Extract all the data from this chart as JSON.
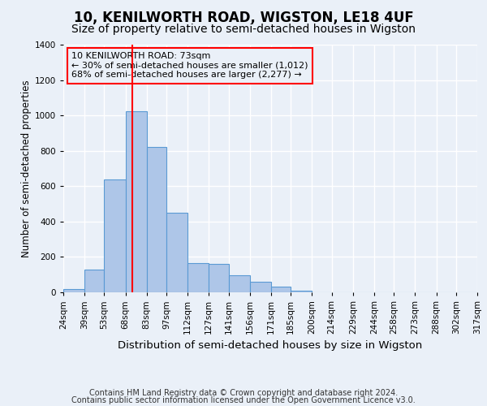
{
  "title": "10, KENILWORTH ROAD, WIGSTON, LE18 4UF",
  "subtitle": "Size of property relative to semi-detached houses in Wigston",
  "xlabel": "Distribution of semi-detached houses by size in Wigston",
  "ylabel": "Number of semi-detached properties",
  "annotation_line1": "10 KENILWORTH ROAD: 73sqm",
  "annotation_line2": "← 30% of semi-detached houses are smaller (1,012)",
  "annotation_line3": "68% of semi-detached houses are larger (2,277) →",
  "footnote1": "Contains HM Land Registry data © Crown copyright and database right 2024.",
  "footnote2": "Contains public sector information licensed under the Open Government Licence v3.0.",
  "bin_labels": [
    "24sqm",
    "39sqm",
    "53sqm",
    "68sqm",
    "83sqm",
    "97sqm",
    "112sqm",
    "127sqm",
    "141sqm",
    "156sqm",
    "171sqm",
    "185sqm",
    "200sqm",
    "214sqm",
    "229sqm",
    "244sqm",
    "258sqm",
    "273sqm",
    "288sqm",
    "302sqm",
    "317sqm"
  ],
  "bin_edges": [
    24,
    39,
    53,
    68,
    83,
    97,
    112,
    127,
    141,
    156,
    171,
    185,
    200,
    214,
    229,
    244,
    258,
    273,
    288,
    302,
    317
  ],
  "bar_heights": [
    20,
    130,
    640,
    1025,
    820,
    450,
    165,
    160,
    95,
    60,
    30,
    10,
    0,
    0,
    0,
    0,
    0,
    0,
    0,
    0
  ],
  "bar_color": "#aec6e8",
  "bar_edge_color": "#5a9ad4",
  "vline_color": "red",
  "vline_x": 73,
  "annotation_box_color": "red",
  "background_color": "#eaf0f8",
  "grid_color": "white",
  "ylim": [
    0,
    1400
  ],
  "yticks": [
    0,
    200,
    400,
    600,
    800,
    1000,
    1200,
    1400
  ],
  "title_fontsize": 12,
  "subtitle_fontsize": 10,
  "xlabel_fontsize": 9.5,
  "ylabel_fontsize": 8.5,
  "tick_fontsize": 7.5,
  "annotation_fontsize": 8,
  "footnote_fontsize": 7
}
